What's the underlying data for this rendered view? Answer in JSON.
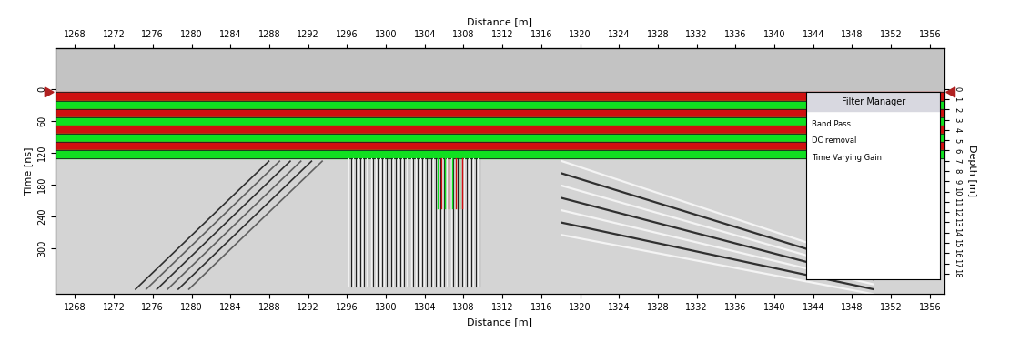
{
  "chart_data": {
    "type": "radargram",
    "x_label": "Distance [m]",
    "y_label": "Time [ns]",
    "y2_label": "Depth [m]",
    "xlim": [
      1266,
      1357.5
    ],
    "xticks": [
      1268,
      1272,
      1276,
      1280,
      1284,
      1288,
      1292,
      1296,
      1300,
      1304,
      1308,
      1312,
      1316,
      1320,
      1324,
      1328,
      1332,
      1336,
      1340,
      1344,
      1348,
      1352,
      1356
    ],
    "ylim": [
      386,
      -78
    ],
    "yticks": [
      0,
      60,
      120,
      180,
      240,
      300
    ],
    "y2lim": [
      20,
      -4
    ],
    "y2ticks": [
      0,
      1,
      2,
      3,
      4,
      5,
      6,
      7,
      8,
      9,
      10,
      11,
      12,
      13,
      14,
      15,
      16,
      17,
      18
    ],
    "panel": {
      "title": "Filter Manager",
      "items": [
        "Band Pass",
        "DC removal",
        "Time Varying Gain"
      ]
    }
  }
}
